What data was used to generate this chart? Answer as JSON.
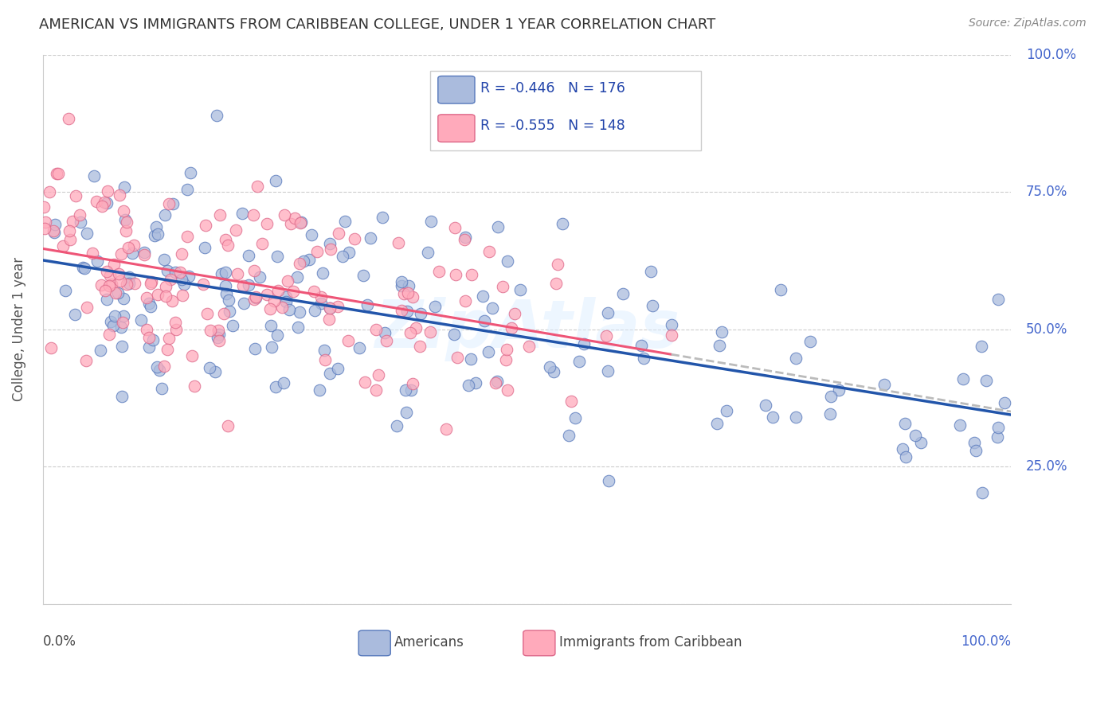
{
  "title": "AMERICAN VS IMMIGRANTS FROM CARIBBEAN COLLEGE, UNDER 1 YEAR CORRELATION CHART",
  "source": "Source: ZipAtlas.com",
  "ylabel": "College, Under 1 year",
  "legend_label1": "Americans",
  "legend_label2": "Immigrants from Caribbean",
  "r1": -0.446,
  "n1": 176,
  "r2": -0.555,
  "n2": 148,
  "color_american_fill": "#aabbdd",
  "color_american_edge": "#5577bb",
  "color_caribbean_fill": "#ffaabb",
  "color_caribbean_edge": "#dd6688",
  "color_line1": "#2255aa",
  "color_line2": "#ee5577",
  "color_line2_dashed": "#bbbbbb",
  "watermark_color": "#ccddeeff",
  "xlim": [
    0.0,
    1.0
  ],
  "ylim": [
    0.0,
    1.0
  ],
  "seed1": 42,
  "seed2": 77
}
